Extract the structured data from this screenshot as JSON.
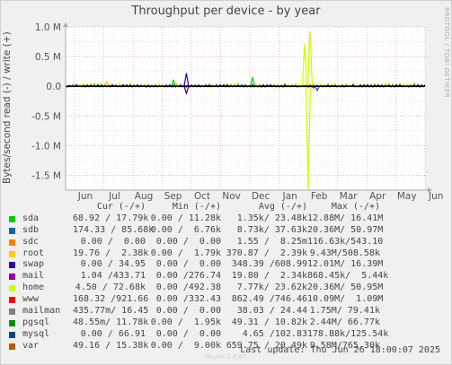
{
  "chart_data": {
    "type": "line",
    "title": "Throughput per device - by year",
    "ylabel": "Bytes/second read (-) / write (+)",
    "ylim": [
      -1.75,
      1.0
    ],
    "yticks": [
      {
        "value": 1.0,
        "label": "1.0 M"
      },
      {
        "value": 0.5,
        "label": "0.5 M"
      },
      {
        "value": 0.0,
        "label": "0.0"
      },
      {
        "value": -0.5,
        "label": "-0.5 M"
      },
      {
        "value": -1.0,
        "label": "-1.0 M"
      },
      {
        "value": -1.5,
        "label": "-1.5 M"
      }
    ],
    "xlabels": [
      "Jun",
      "Jul",
      "Aug",
      "Sep",
      "Oct",
      "Nov",
      "Dec",
      "Jan",
      "Feb",
      "Mar",
      "Apr",
      "May",
      "Jun"
    ],
    "grid": true,
    "spikes": [
      {
        "series": "root",
        "position": 0.115,
        "value": 0.08
      },
      {
        "series": "sda",
        "position": 0.3,
        "value": 0.1
      },
      {
        "series": "swap",
        "position": 0.336,
        "value": 0.22
      },
      {
        "series": "swap",
        "position": 0.336,
        "value": -0.12
      },
      {
        "series": "sda",
        "position": 0.52,
        "value": 0.15
      },
      {
        "series": "home",
        "position": 0.665,
        "value": 0.72
      },
      {
        "series": "home",
        "position": 0.68,
        "value": 0.93
      },
      {
        "series": "home",
        "position": 0.675,
        "value": -1.75
      },
      {
        "series": "sdb",
        "position": 0.7,
        "value": -0.07
      },
      {
        "series": "www",
        "position": 0.69,
        "value": -0.03
      }
    ]
  },
  "legend": {
    "headers": {
      "cur": "Cur (-/+)",
      "min": "Min (-/+)",
      "avg": "Avg (-/+)",
      "max": "Max (-/+)"
    },
    "rows": [
      {
        "name": "sda",
        "color": "#00cc00",
        "cur": "68.92 / 17.79k",
        "min": "0.00 / 11.28k",
        "avg": "1.35k/ 23.48k",
        "max": "12.88M/ 16.41M"
      },
      {
        "name": "sdb",
        "color": "#0066b3",
        "cur": "174.33 / 85.68k",
        "min": "0.00 /  6.76k",
        "avg": "8.73k/ 37.63k",
        "max": "20.36M/ 50.97M"
      },
      {
        "name": "sdc",
        "color": "#ff8000",
        "cur": "0.00 /  0.00",
        "min": "0.00 /  0.00",
        "avg": "1.55 /  8.25m",
        "max": "116.63k/543.10"
      },
      {
        "name": "root",
        "color": "#ffcc00",
        "cur": "19.76 /  2.38k",
        "min": "0.00 /  1.79k",
        "avg": "370.87 /  2.39k",
        "max": "9.43M/508.58k"
      },
      {
        "name": "swap",
        "color": "#330099",
        "cur": "0.00 / 34.95",
        "min": "0.00 /  0.00",
        "avg": "348.39 /608.99",
        "max": "12.01M/ 16.39M"
      },
      {
        "name": "mail",
        "color": "#990099",
        "cur": "1.04 /433.71",
        "min": "0.00 /276.74",
        "avg": "19.80 /  2.34k",
        "max": "868.45k/  5.44k"
      },
      {
        "name": "home",
        "color": "#ccff00",
        "cur": "4.50 / 72.68k",
        "min": "0.00 /492.38",
        "avg": "7.77k/ 23.62k",
        "max": "20.36M/ 50.95M"
      },
      {
        "name": "www",
        "color": "#ff0000",
        "cur": "168.32 /921.66",
        "min": "0.00 /332.43",
        "avg": "862.49 /746.46",
        "max": "10.09M/  1.09M"
      },
      {
        "name": "mailman",
        "color": "#808080",
        "cur": "435.77m/ 16.45",
        "min": "0.00 /  0.00",
        "avg": "38.03 / 24.44",
        "max": "1.75M/ 79.41k"
      },
      {
        "name": "pgsql",
        "color": "#008f00",
        "cur": "48.55m/ 11.78k",
        "min": "0.00 /  1.95k",
        "avg": "49.31 / 10.82k",
        "max": "2.44M/ 66.77k"
      },
      {
        "name": "mysql",
        "color": "#00487d",
        "cur": "0.00 / 66.91",
        "min": "0.00 /  0.00",
        "avg": "4.65 /102.83",
        "max": "178.88k/125.54k"
      },
      {
        "name": "var",
        "color": "#b35a00",
        "cur": "49.16 / 15.38k",
        "min": "0.00 /  9.00k",
        "avg": "659.75 / 20.49k",
        "max": "9.58M/765.30k"
      }
    ]
  },
  "last_update": "Last update: Thu Jun 26 18:00:07 2025",
  "side_label": "RRDTOOL / TOBI OETIKER",
  "footer": "Munin 2.0.67"
}
